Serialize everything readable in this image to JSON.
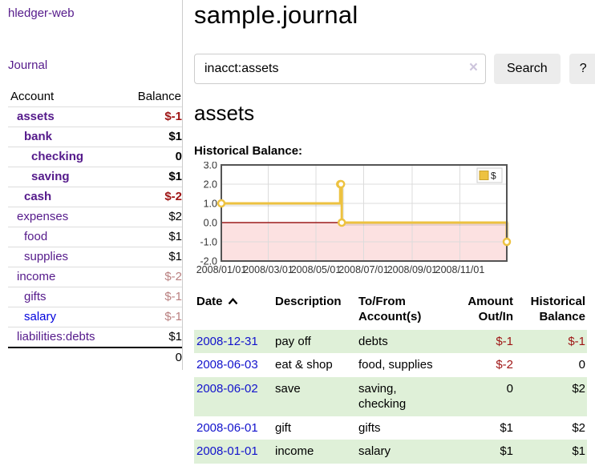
{
  "app": {
    "brand": "hledger-web"
  },
  "theme": {
    "link_purple": "#551a8b",
    "link_blue": "#0000dd",
    "negative_strong": "#9e1414",
    "negative_soft": "#b97f7f",
    "row_stripe_green": "#dff0d8",
    "series_gold": "#edc240"
  },
  "sidebar": {
    "journal_label": "Journal",
    "accounts_table": {
      "headers": {
        "account": "Account",
        "balance": "Balance"
      },
      "rows": [
        {
          "name": "assets",
          "balance": "$-1",
          "depth": 1,
          "bold": true,
          "balance_style": "neg-strong"
        },
        {
          "name": "bank",
          "balance": "$1",
          "depth": 2,
          "bold": true,
          "balance_style": "pos-strong"
        },
        {
          "name": "checking",
          "balance": "0",
          "depth": 3,
          "bold": true,
          "balance_style": "pos-strong"
        },
        {
          "name": "saving",
          "balance": "$1",
          "depth": 3,
          "bold": true,
          "balance_style": "pos-strong"
        },
        {
          "name": "cash",
          "balance": "$-2",
          "depth": 2,
          "bold": true,
          "balance_style": "neg-strong"
        },
        {
          "name": "expenses",
          "balance": "$2",
          "depth": 1,
          "bold": false,
          "balance_style": "pos"
        },
        {
          "name": "food",
          "balance": "$1",
          "depth": 2,
          "bold": false,
          "balance_style": "pos"
        },
        {
          "name": "supplies",
          "balance": "$1",
          "depth": 2,
          "bold": false,
          "balance_style": "pos"
        },
        {
          "name": "income",
          "balance": "$-2",
          "depth": 1,
          "bold": false,
          "balance_style": "neg-soft"
        },
        {
          "name": "gifts",
          "balance": "$-1",
          "depth": 2,
          "bold": false,
          "balance_style": "neg-soft"
        },
        {
          "name": "salary",
          "balance": "$-1",
          "depth": 2,
          "bold": false,
          "balance_style": "neg-soft",
          "link_color": "blue"
        },
        {
          "name": "liabilities:debts",
          "balance": "$1",
          "depth": 1,
          "bold": false,
          "balance_style": "pos"
        }
      ],
      "total": "0"
    }
  },
  "header": {
    "title": "sample.journal"
  },
  "search": {
    "value": "inacct:assets",
    "clear_icon": "×",
    "button_label": "Search",
    "help_label": "?"
  },
  "account_page": {
    "title": "assets",
    "chart_label": "Historical Balance:"
  },
  "chart_data": {
    "type": "line",
    "style": "step-after",
    "title": "Historical Balance:",
    "xlim": [
      "2008-01-01",
      "2008-12-31"
    ],
    "ylim": [
      -2,
      3
    ],
    "x_ticks": [
      "2008/01/01",
      "2008/03/01",
      "2008/05/01",
      "2008/07/01",
      "2008/09/01",
      "2008/11/01"
    ],
    "y_ticks": [
      -2,
      -1,
      0,
      1,
      2,
      3
    ],
    "grid": true,
    "legend": {
      "position": "top-right",
      "label": "$"
    },
    "series": [
      {
        "name": "$",
        "color": "#edc240",
        "points": [
          [
            "2008-01-01",
            1
          ],
          [
            "2008-06-01",
            2
          ],
          [
            "2008-06-02",
            2
          ],
          [
            "2008-06-03",
            0
          ],
          [
            "2008-12-31",
            -1
          ]
        ]
      }
    ],
    "negative_region_color": "#fce1e1",
    "zero_line_color": "#9b1c1c"
  },
  "register_table": {
    "headers": [
      {
        "label": "Date",
        "sort_icon": "chevron-up",
        "align": "left"
      },
      {
        "label": "Description",
        "align": "left"
      },
      {
        "label": "To/From Account(s)",
        "align": "left"
      },
      {
        "label": "Amount Out/In",
        "align": "right"
      },
      {
        "label": "Historical Balance",
        "align": "right"
      }
    ],
    "rows": [
      {
        "date": "2008-12-31",
        "description": "pay off",
        "accounts": "debts",
        "amount": "$-1",
        "amount_neg": true,
        "balance": "$-1",
        "balance_neg": true,
        "stripe": true
      },
      {
        "date": "2008-06-03",
        "description": "eat & shop",
        "accounts": "food, supplies",
        "amount": "$-2",
        "amount_neg": true,
        "balance": "0",
        "balance_neg": false,
        "stripe": false
      },
      {
        "date": "2008-06-02",
        "description": "save",
        "accounts": "saving, checking",
        "amount": "0",
        "amount_neg": false,
        "balance": "$2",
        "balance_neg": false,
        "stripe": true
      },
      {
        "date": "2008-06-01",
        "description": "gift",
        "accounts": "gifts",
        "amount": "$1",
        "amount_neg": false,
        "balance": "$2",
        "balance_neg": false,
        "stripe": false
      },
      {
        "date": "2008-01-01",
        "description": "income",
        "accounts": "salary",
        "amount": "$1",
        "amount_neg": false,
        "balance": "$1",
        "balance_neg": false,
        "stripe": true
      }
    ]
  }
}
